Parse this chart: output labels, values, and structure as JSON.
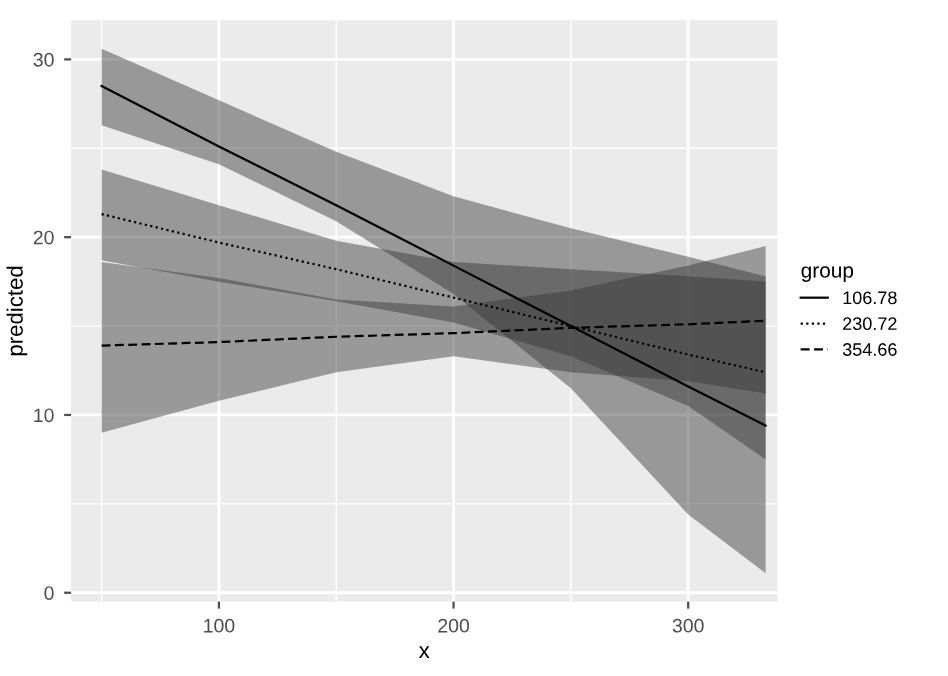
{
  "chart_data": {
    "type": "line",
    "xlabel": "x",
    "ylabel": "predicted",
    "legend_title": "group",
    "legend": "right",
    "grid": true,
    "xlim": [
      37,
      338
    ],
    "ylim": [
      -0.5,
      32.2
    ],
    "xticks": [
      100,
      200,
      300
    ],
    "yticks": [
      0,
      10,
      20,
      30
    ],
    "series": [
      {
        "name": "106.78",
        "color": "#000000",
        "line_style": "solid",
        "x": [
          50,
          100,
          150,
          200,
          250,
          300,
          333
        ],
        "values": [
          28.5,
          25.1,
          21.8,
          18.4,
          15.0,
          11.6,
          9.4
        ],
        "lower": [
          26.3,
          24.1,
          20.9,
          16.8,
          11.5,
          4.4,
          1.1
        ],
        "upper": [
          30.6,
          27.7,
          24.8,
          22.3,
          20.5,
          18.9,
          17.8
        ]
      },
      {
        "name": "230.72",
        "color": "#000000",
        "line_style": "dotted",
        "x": [
          50,
          100,
          150,
          200,
          250,
          300,
          333
        ],
        "values": [
          21.3,
          19.7,
          18.2,
          16.6,
          15.0,
          13.4,
          12.4
        ],
        "lower": [
          18.7,
          17.5,
          16.4,
          15.2,
          13.3,
          10.5,
          7.5
        ],
        "upper": [
          23.8,
          21.8,
          19.8,
          18.6,
          18.2,
          17.8,
          17.5
        ]
      },
      {
        "name": "354.66",
        "color": "#000000",
        "line_style": "dashed",
        "x": [
          50,
          100,
          150,
          200,
          250,
          300,
          333
        ],
        "values": [
          13.9,
          14.1,
          14.4,
          14.6,
          14.9,
          15.1,
          15.3
        ],
        "lower": [
          9.0,
          10.8,
          12.4,
          13.3,
          12.4,
          11.9,
          11.2
        ],
        "upper": [
          18.6,
          17.7,
          16.5,
          16.1,
          17.0,
          18.4,
          19.5
        ]
      }
    ]
  }
}
